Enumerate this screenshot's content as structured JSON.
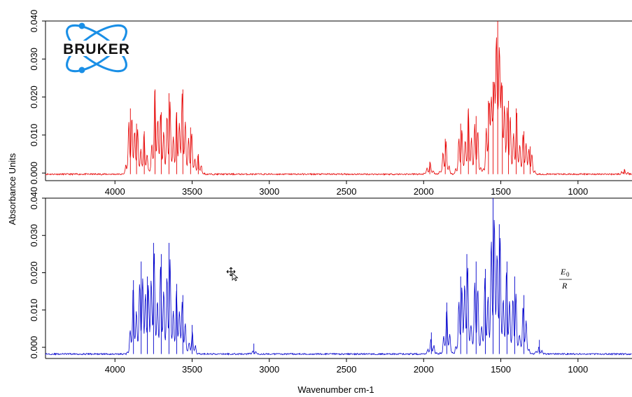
{
  "logo": {
    "text": "BRUKER",
    "accent": "#1a8fe6"
  },
  "annotation": {
    "numerator": "E",
    "subscript": "0",
    "denominator": "R"
  },
  "cursor_icon": "move-cursor-icon",
  "chart_data": [
    {
      "type": "line",
      "panel": "top",
      "color": "#e60000",
      "xlabel": "",
      "ylabel": "Absorbance Units",
      "xlim": [
        4450,
        650
      ],
      "ylim": [
        -0.002,
        0.04
      ],
      "x_ticks": [
        4000,
        3500,
        3000,
        2500,
        2000,
        1500,
        1000
      ],
      "y_ticks": [
        0.0,
        0.01,
        0.02,
        0.03,
        0.04
      ],
      "y_tick_labels": [
        "0.000",
        "0.010",
        "0.020",
        "0.030",
        "0.040"
      ],
      "grid": false,
      "baseline": -0.0003,
      "bands": [
        {
          "center": 3900,
          "height": 0.017
        },
        {
          "center": 3860,
          "height": 0.013
        },
        {
          "center": 3810,
          "height": 0.011
        },
        {
          "center": 3740,
          "height": 0.022
        },
        {
          "center": 3700,
          "height": 0.016
        },
        {
          "center": 3650,
          "height": 0.021
        },
        {
          "center": 3600,
          "height": 0.016
        },
        {
          "center": 3560,
          "height": 0.022
        },
        {
          "center": 3510,
          "height": 0.012
        },
        {
          "center": 3460,
          "height": 0.005
        },
        {
          "center": 1960,
          "height": 0.003
        },
        {
          "center": 1860,
          "height": 0.009
        },
        {
          "center": 1760,
          "height": 0.013
        },
        {
          "center": 1710,
          "height": 0.017
        },
        {
          "center": 1660,
          "height": 0.015
        },
        {
          "center": 1580,
          "height": 0.019
        },
        {
          "center": 1550,
          "height": 0.024
        },
        {
          "center": 1520,
          "height": 0.04
        },
        {
          "center": 1490,
          "height": 0.023
        },
        {
          "center": 1450,
          "height": 0.019
        },
        {
          "center": 1400,
          "height": 0.017
        },
        {
          "center": 1350,
          "height": 0.011
        },
        {
          "center": 1310,
          "height": 0.007
        },
        {
          "center": 700,
          "height": 0.001
        }
      ]
    },
    {
      "type": "line",
      "panel": "bottom",
      "color": "#0000cc",
      "xlabel": "Wavenumber cm-1",
      "ylabel": "Absorbance Units",
      "xlim": [
        4450,
        650
      ],
      "ylim": [
        -0.003,
        0.04
      ],
      "x_ticks": [
        4000,
        3500,
        3000,
        2500,
        2000,
        1500,
        1000
      ],
      "y_ticks": [
        0.0,
        0.01,
        0.02,
        0.03,
        0.04
      ],
      "y_tick_labels": [
        "0.000",
        "0.010",
        "0.020",
        "0.030",
        "0.040"
      ],
      "grid": false,
      "baseline": -0.0018,
      "bands": [
        {
          "center": 3880,
          "height": 0.018
        },
        {
          "center": 3830,
          "height": 0.023
        },
        {
          "center": 3790,
          "height": 0.019
        },
        {
          "center": 3750,
          "height": 0.028
        },
        {
          "center": 3700,
          "height": 0.025
        },
        {
          "center": 3650,
          "height": 0.028
        },
        {
          "center": 3600,
          "height": 0.017
        },
        {
          "center": 3560,
          "height": 0.014
        },
        {
          "center": 3500,
          "height": 0.006
        },
        {
          "center": 3100,
          "height": 0.001
        },
        {
          "center": 1950,
          "height": 0.004
        },
        {
          "center": 1850,
          "height": 0.012
        },
        {
          "center": 1760,
          "height": 0.019
        },
        {
          "center": 1720,
          "height": 0.025
        },
        {
          "center": 1660,
          "height": 0.023
        },
        {
          "center": 1600,
          "height": 0.021
        },
        {
          "center": 1550,
          "height": 0.04
        },
        {
          "center": 1510,
          "height": 0.033
        },
        {
          "center": 1460,
          "height": 0.023
        },
        {
          "center": 1410,
          "height": 0.019
        },
        {
          "center": 1350,
          "height": 0.014
        },
        {
          "center": 1250,
          "height": 0.002
        }
      ]
    }
  ]
}
